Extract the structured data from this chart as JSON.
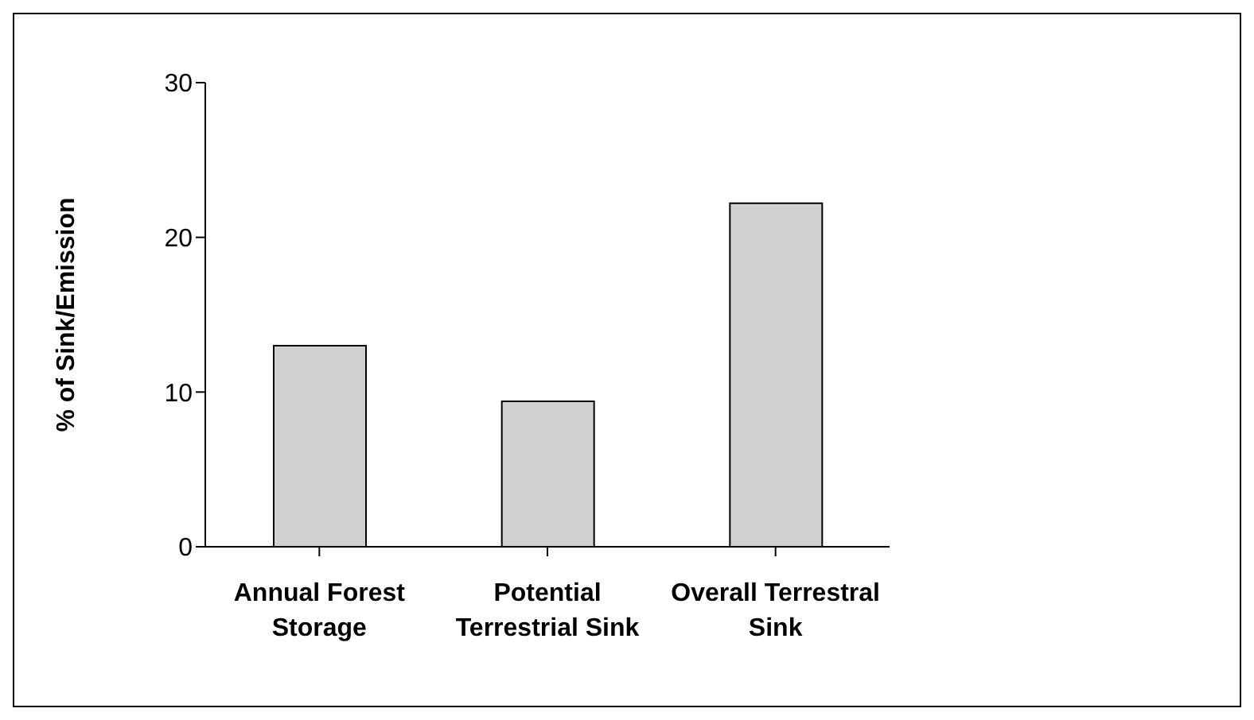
{
  "chart_data": {
    "type": "bar",
    "ylabel": "% of Sink/Emission",
    "categories": [
      "Annual Forest Storage",
      "Potential Terrestrial Sink",
      "Overall Terrestral Sink"
    ],
    "values": [
      13.0,
      9.4,
      22.2
    ],
    "color": "#d0d0d0",
    "ylim": [
      0,
      30
    ],
    "yticks": [
      0,
      10,
      20,
      30
    ],
    "grid": false
  }
}
